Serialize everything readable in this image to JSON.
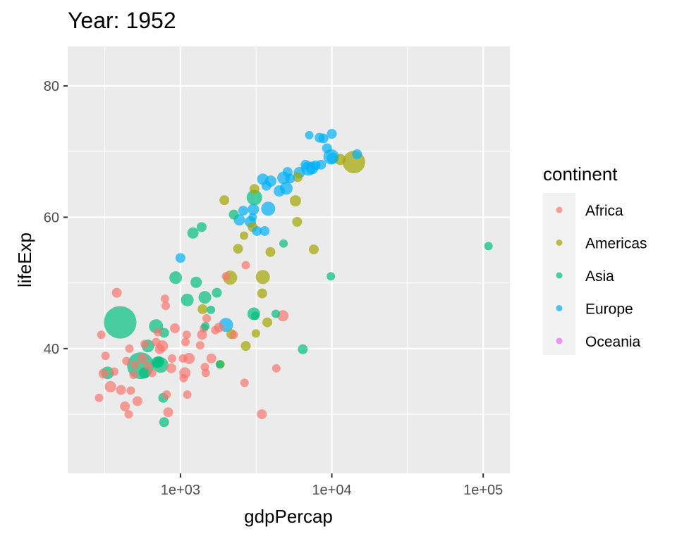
{
  "chart_data": {
    "type": "scatter",
    "title": "Year: 1952",
    "xlabel": "gdpPercap",
    "ylabel": "lifeExp",
    "x_scale": "log10",
    "xlim": [
      180,
      150000
    ],
    "ylim": [
      21,
      86
    ],
    "x_ticks": [
      {
        "value": 1000,
        "label": "1e+03"
      },
      {
        "value": 10000,
        "label": "1e+04"
      },
      {
        "value": 100000,
        "label": "1e+05"
      }
    ],
    "y_ticks": [
      {
        "value": 40,
        "label": "40"
      },
      {
        "value": 60,
        "label": "60"
      },
      {
        "value": 80,
        "label": "80"
      }
    ],
    "grid": true,
    "legend": {
      "title": "continent",
      "placement": "right",
      "entries": [
        "Africa",
        "Americas",
        "Asia",
        "Europe",
        "Oceania"
      ]
    },
    "colors": {
      "Africa": "#F8766D",
      "Americas": "#A3A500",
      "Asia": "#00BF7D",
      "Europe": "#00B0F6",
      "Oceania": "#E76BF3",
      "panel": "#EBEBEB",
      "grid": "#FFFFFF"
    },
    "point_alpha": 0.7,
    "series": [
      {
        "name": "Africa",
        "points": [
          {
            "x": 290,
            "y": 32.5,
            "s": 6
          },
          {
            "x": 300,
            "y": 42.1,
            "s": 6
          },
          {
            "x": 310,
            "y": 36.2,
            "s": 7
          },
          {
            "x": 320,
            "y": 38.9,
            "s": 6
          },
          {
            "x": 345,
            "y": 34.2,
            "s": 8
          },
          {
            "x": 365,
            "y": 36.5,
            "s": 6
          },
          {
            "x": 380,
            "y": 48.5,
            "s": 7
          },
          {
            "x": 405,
            "y": 33.7,
            "s": 7
          },
          {
            "x": 430,
            "y": 31.2,
            "s": 7
          },
          {
            "x": 440,
            "y": 38.1,
            "s": 6
          },
          {
            "x": 455,
            "y": 30.0,
            "s": 6
          },
          {
            "x": 460,
            "y": 40.0,
            "s": 6
          },
          {
            "x": 470,
            "y": 33.6,
            "s": 6
          },
          {
            "x": 490,
            "y": 36.0,
            "s": 6
          },
          {
            "x": 500,
            "y": 37.5,
            "s": 6
          },
          {
            "x": 520,
            "y": 32.0,
            "s": 7
          },
          {
            "x": 560,
            "y": 38.5,
            "s": 7
          },
          {
            "x": 580,
            "y": 40.7,
            "s": 6
          },
          {
            "x": 610,
            "y": 37.4,
            "s": 6
          },
          {
            "x": 650,
            "y": 36.3,
            "s": 6
          },
          {
            "x": 690,
            "y": 41.0,
            "s": 6
          },
          {
            "x": 710,
            "y": 42.5,
            "s": 6
          },
          {
            "x": 730,
            "y": 39.9,
            "s": 7
          },
          {
            "x": 760,
            "y": 40.4,
            "s": 8
          },
          {
            "x": 790,
            "y": 47.6,
            "s": 6
          },
          {
            "x": 800,
            "y": 46.5,
            "s": 6
          },
          {
            "x": 810,
            "y": 33.0,
            "s": 6
          },
          {
            "x": 830,
            "y": 30.3,
            "s": 7
          },
          {
            "x": 870,
            "y": 37.0,
            "s": 7
          },
          {
            "x": 880,
            "y": 38.5,
            "s": 6
          },
          {
            "x": 920,
            "y": 43.1,
            "s": 7
          },
          {
            "x": 1040,
            "y": 38.5,
            "s": 6
          },
          {
            "x": 1050,
            "y": 35.5,
            "s": 6
          },
          {
            "x": 1070,
            "y": 36.3,
            "s": 8
          },
          {
            "x": 1080,
            "y": 41.0,
            "s": 6
          },
          {
            "x": 1100,
            "y": 42.1,
            "s": 6
          },
          {
            "x": 1110,
            "y": 33.0,
            "s": 6
          },
          {
            "x": 1140,
            "y": 38.5,
            "s": 8
          },
          {
            "x": 1350,
            "y": 40.5,
            "s": 6
          },
          {
            "x": 1390,
            "y": 42.1,
            "s": 7
          },
          {
            "x": 1430,
            "y": 43.1,
            "s": 6
          },
          {
            "x": 1450,
            "y": 37.2,
            "s": 6
          },
          {
            "x": 1470,
            "y": 36.3,
            "s": 6
          },
          {
            "x": 1490,
            "y": 44.6,
            "s": 6
          },
          {
            "x": 1600,
            "y": 38.5,
            "s": 7
          },
          {
            "x": 1700,
            "y": 42.8,
            "s": 6
          },
          {
            "x": 1800,
            "y": 43.2,
            "s": 7
          },
          {
            "x": 2000,
            "y": 51.0,
            "s": 6
          },
          {
            "x": 2250,
            "y": 42.1,
            "s": 6
          },
          {
            "x": 2650,
            "y": 34.8,
            "s": 6
          },
          {
            "x": 2700,
            "y": 52.7,
            "s": 6
          },
          {
            "x": 3450,
            "y": 30.0,
            "s": 7
          },
          {
            "x": 4300,
            "y": 37.0,
            "s": 6
          },
          {
            "x": 4750,
            "y": 45.0,
            "s": 8
          }
        ]
      },
      {
        "name": "Americas",
        "points": [
          {
            "x": 1400,
            "y": 46.0,
            "s": 7
          },
          {
            "x": 1840,
            "y": 37.6,
            "s": 6
          },
          {
            "x": 1950,
            "y": 62.6,
            "s": 7
          },
          {
            "x": 2130,
            "y": 50.8,
            "s": 10
          },
          {
            "x": 2170,
            "y": 42.2,
            "s": 7
          },
          {
            "x": 2400,
            "y": 55.2,
            "s": 7
          },
          {
            "x": 2630,
            "y": 57.2,
            "s": 6
          },
          {
            "x": 2700,
            "y": 40.4,
            "s": 7
          },
          {
            "x": 3000,
            "y": 58.5,
            "s": 7
          },
          {
            "x": 3080,
            "y": 64.3,
            "s": 7
          },
          {
            "x": 3150,
            "y": 42.3,
            "s": 6
          },
          {
            "x": 3470,
            "y": 48.4,
            "s": 7
          },
          {
            "x": 3500,
            "y": 50.9,
            "s": 10
          },
          {
            "x": 3750,
            "y": 44.0,
            "s": 7
          },
          {
            "x": 3930,
            "y": 54.7,
            "s": 7
          },
          {
            "x": 5750,
            "y": 62.5,
            "s": 8
          },
          {
            "x": 5900,
            "y": 59.3,
            "s": 7
          },
          {
            "x": 5950,
            "y": 66.1,
            "s": 7
          },
          {
            "x": 7600,
            "y": 55.1,
            "s": 7
          },
          {
            "x": 11350,
            "y": 68.8,
            "s": 8
          },
          {
            "x": 13990,
            "y": 68.4,
            "s": 16
          }
        ]
      },
      {
        "name": "Asia",
        "points": [
          {
            "x": 330,
            "y": 36.3,
            "s": 9
          },
          {
            "x": 400,
            "y": 44.0,
            "s": 23
          },
          {
            "x": 545,
            "y": 37.4,
            "s": 19
          },
          {
            "x": 580,
            "y": 36.3,
            "s": 8
          },
          {
            "x": 610,
            "y": 40.4,
            "s": 9
          },
          {
            "x": 690,
            "y": 43.4,
            "s": 10
          },
          {
            "x": 700,
            "y": 37.9,
            "s": 8
          },
          {
            "x": 720,
            "y": 38.0,
            "s": 8
          },
          {
            "x": 740,
            "y": 37.5,
            "s": 11
          },
          {
            "x": 770,
            "y": 32.5,
            "s": 7
          },
          {
            "x": 780,
            "y": 42.4,
            "s": 7
          },
          {
            "x": 780,
            "y": 28.8,
            "s": 7
          },
          {
            "x": 930,
            "y": 50.8,
            "s": 9
          },
          {
            "x": 1110,
            "y": 47.4,
            "s": 9
          },
          {
            "x": 1210,
            "y": 57.6,
            "s": 8
          },
          {
            "x": 1270,
            "y": 50.1,
            "s": 8
          },
          {
            "x": 1380,
            "y": 58.5,
            "s": 7
          },
          {
            "x": 1450,
            "y": 47.8,
            "s": 9
          },
          {
            "x": 1460,
            "y": 43.4,
            "s": 6
          },
          {
            "x": 1590,
            "y": 45.9,
            "s": 6
          },
          {
            "x": 1740,
            "y": 48.5,
            "s": 7
          },
          {
            "x": 1820,
            "y": 37.6,
            "s": 6
          },
          {
            "x": 2250,
            "y": 60.4,
            "s": 7
          },
          {
            "x": 3050,
            "y": 45.3,
            "s": 9
          },
          {
            "x": 3080,
            "y": 63.0,
            "s": 11
          },
          {
            "x": 3120,
            "y": 45.0,
            "s": 6
          },
          {
            "x": 4260,
            "y": 45.3,
            "s": 6
          },
          {
            "x": 4800,
            "y": 56.0,
            "s": 6
          },
          {
            "x": 6430,
            "y": 39.9,
            "s": 7
          },
          {
            "x": 9860,
            "y": 51.0,
            "s": 6
          },
          {
            "x": 108380,
            "y": 55.6,
            "s": 6
          }
        ]
      },
      {
        "name": "Europe",
        "points": [
          {
            "x": 1000,
            "y": 53.8,
            "s": 7
          },
          {
            "x": 2000,
            "y": 43.6,
            "s": 10
          },
          {
            "x": 2450,
            "y": 59.6,
            "s": 8
          },
          {
            "x": 2600,
            "y": 61.0,
            "s": 7
          },
          {
            "x": 2900,
            "y": 59.3,
            "s": 8
          },
          {
            "x": 3000,
            "y": 60.0,
            "s": 6
          },
          {
            "x": 3030,
            "y": 61.2,
            "s": 8
          },
          {
            "x": 3200,
            "y": 57.9,
            "s": 7
          },
          {
            "x": 3500,
            "y": 65.8,
            "s": 8
          },
          {
            "x": 3600,
            "y": 57.9,
            "s": 7
          },
          {
            "x": 3700,
            "y": 64.8,
            "s": 7
          },
          {
            "x": 3800,
            "y": 61.3,
            "s": 10
          },
          {
            "x": 3950,
            "y": 65.5,
            "s": 8
          },
          {
            "x": 4500,
            "y": 64.0,
            "s": 8
          },
          {
            "x": 4800,
            "y": 66.0,
            "s": 9
          },
          {
            "x": 5000,
            "y": 64.4,
            "s": 9
          },
          {
            "x": 5100,
            "y": 66.9,
            "s": 7
          },
          {
            "x": 5300,
            "y": 65.9,
            "s": 7
          },
          {
            "x": 6100,
            "y": 66.8,
            "s": 8
          },
          {
            "x": 6700,
            "y": 68.0,
            "s": 7
          },
          {
            "x": 7000,
            "y": 67.4,
            "s": 10
          },
          {
            "x": 7100,
            "y": 72.5,
            "s": 6
          },
          {
            "x": 7400,
            "y": 67.5,
            "s": 9
          },
          {
            "x": 7800,
            "y": 67.9,
            "s": 7
          },
          {
            "x": 8300,
            "y": 72.1,
            "s": 7
          },
          {
            "x": 8500,
            "y": 68.0,
            "s": 7
          },
          {
            "x": 8800,
            "y": 72.0,
            "s": 7
          },
          {
            "x": 9300,
            "y": 70.5,
            "s": 7
          },
          {
            "x": 9900,
            "y": 69.2,
            "s": 11
          },
          {
            "x": 10000,
            "y": 72.7,
            "s": 7
          },
          {
            "x": 10100,
            "y": 69.0,
            "s": 8
          },
          {
            "x": 14700,
            "y": 69.6,
            "s": 7
          }
        ]
      },
      {
        "name": "Oceania",
        "points": []
      }
    ]
  }
}
